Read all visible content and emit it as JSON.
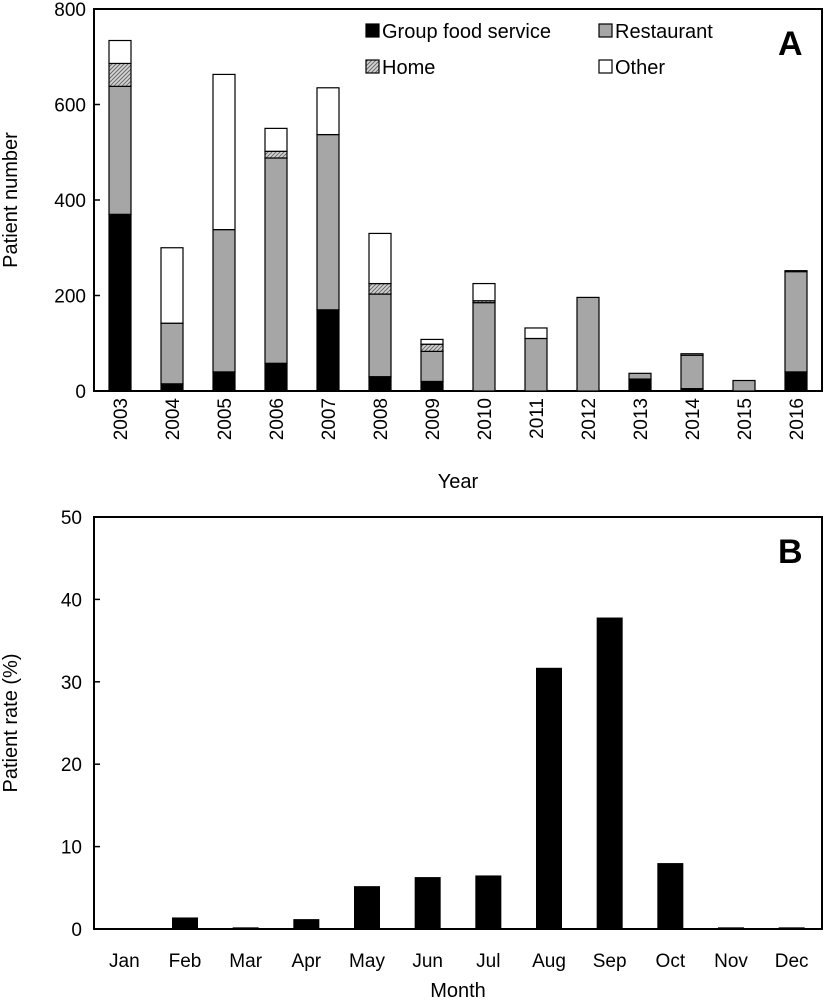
{
  "chart_data": [
    {
      "type": "bar",
      "stacked": true,
      "panel_label": "A",
      "xlabel": "Year",
      "ylabel": "Patient number",
      "ylim": [
        0,
        800
      ],
      "yticks": [
        0,
        200,
        400,
        600,
        800
      ],
      "categories": [
        "2003",
        "2004",
        "2005",
        "2006",
        "2007",
        "2008",
        "2009",
        "2010",
        "2011",
        "2012",
        "2013",
        "2014",
        "2015",
        "2016"
      ],
      "legend_position": "top",
      "series": [
        {
          "name": "Group food service",
          "color": "#000000",
          "pattern": "solid",
          "values": [
            370,
            15,
            40,
            58,
            170,
            30,
            20,
            0,
            0,
            0,
            25,
            5,
            0,
            40
          ]
        },
        {
          "name": "Restaurant",
          "color": "#a6a6a6",
          "pattern": "solid",
          "values": [
            268,
            127,
            298,
            430,
            367,
            173,
            63,
            185,
            110,
            196,
            12,
            70,
            22,
            210
          ]
        },
        {
          "name": "Home",
          "color": "#c8c8c8",
          "pattern": "hatch",
          "values": [
            48,
            0,
            0,
            14,
            0,
            22,
            15,
            4,
            0,
            0,
            0,
            0,
            0,
            0
          ]
        },
        {
          "name": "Other",
          "color": "#ffffff",
          "pattern": "solid",
          "values": [
            48,
            158,
            325,
            48,
            98,
            105,
            10,
            36,
            22,
            0,
            0,
            3,
            0,
            2
          ]
        }
      ]
    },
    {
      "type": "bar",
      "panel_label": "B",
      "xlabel": "Month",
      "ylabel": "Patient rate (%)",
      "ylim": [
        0,
        50
      ],
      "yticks": [
        0,
        10,
        20,
        30,
        40,
        50
      ],
      "categories": [
        "Jan",
        "Feb",
        "Mar",
        "Apr",
        "May",
        "Jun",
        "Jul",
        "Aug",
        "Sep",
        "Oct",
        "Nov",
        "Dec"
      ],
      "values": [
        0,
        1.4,
        0.2,
        1.2,
        5.2,
        6.3,
        6.5,
        31.7,
        37.8,
        8.0,
        0.2,
        0.2
      ],
      "color": "#000000"
    }
  ]
}
